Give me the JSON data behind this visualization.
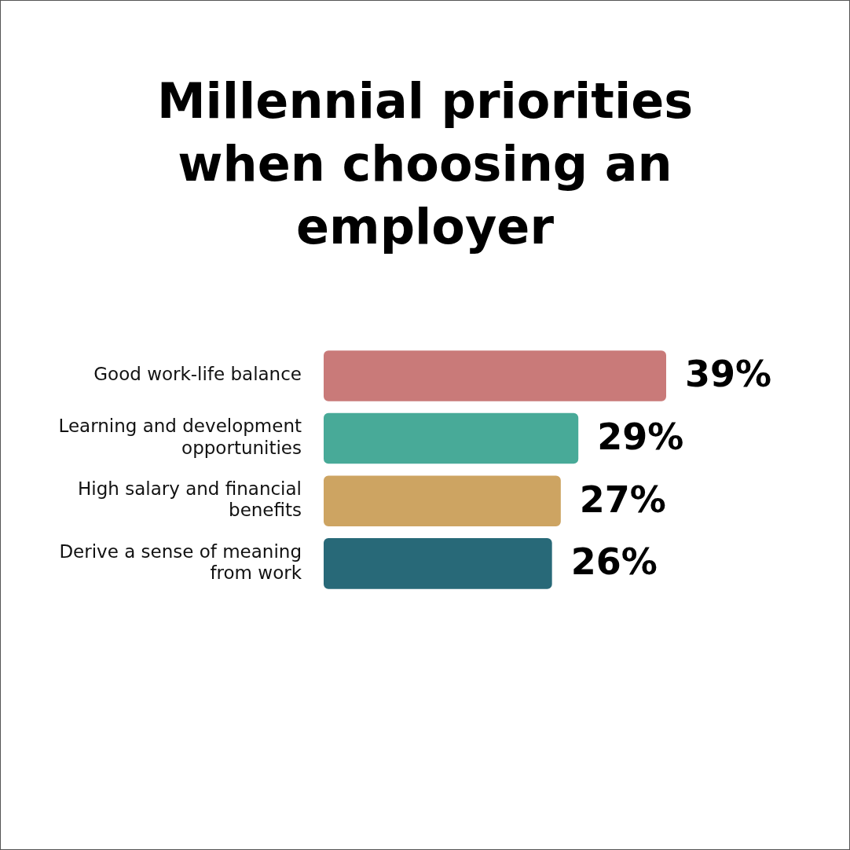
{
  "chart_data": {
    "type": "bar",
    "orientation": "horizontal",
    "title": "Millennial priorities when choosing an employer",
    "categories": [
      "Good work-life balance",
      "Learning and development opportunities",
      "High salary and financial benefits",
      "Derive a sense of meaning from work"
    ],
    "values": [
      39,
      29,
      27,
      26
    ],
    "colors": [
      "#c97a79",
      "#48aa98",
      "#cda462",
      "#286978"
    ],
    "value_labels": [
      "39%",
      "29%",
      "27%",
      "26%"
    ],
    "tick_labels": "y"
  }
}
